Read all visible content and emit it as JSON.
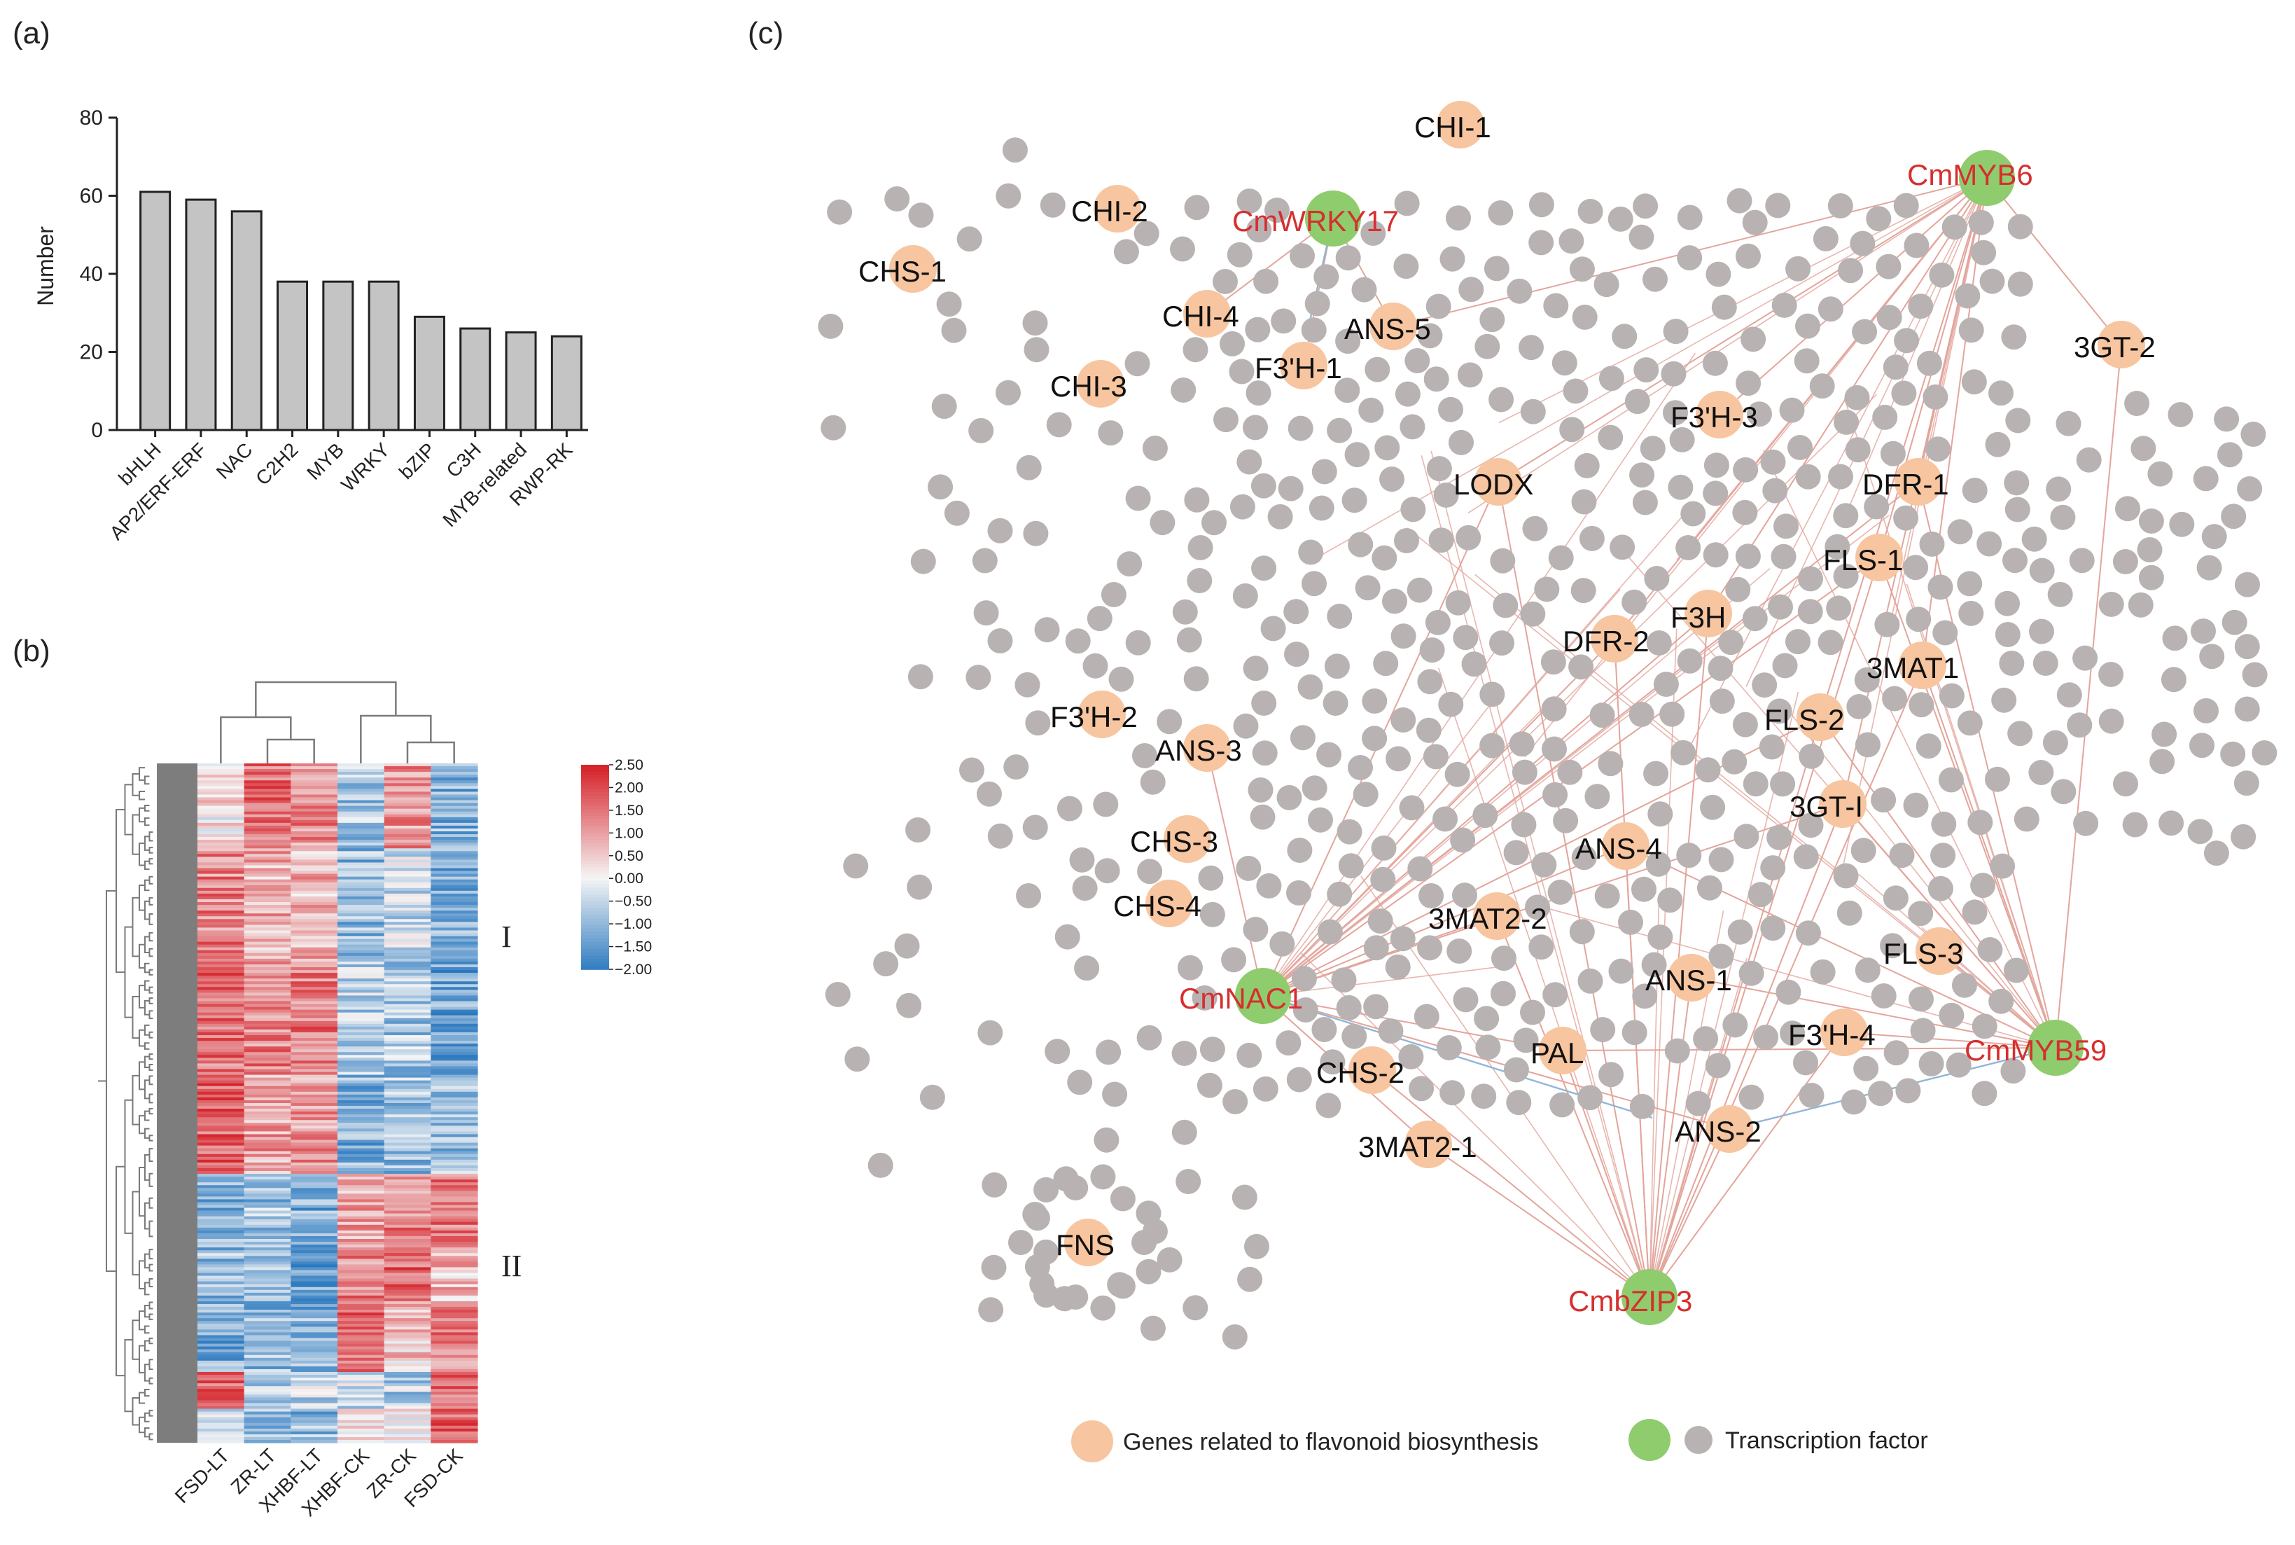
{
  "panels": {
    "a": "(a)",
    "b": "(b)",
    "c": "(c)"
  },
  "colors": {
    "bar_fill": "#c4c4c4",
    "gene_node": "#f7c59f",
    "tf_node": "#8fcc6e",
    "grey_node": "#b8b3b2",
    "edge_red": "#e3a59c",
    "edge_blue": "#8fb6d8",
    "tf_text": "#d62f2f",
    "heat_high": "#d6262d",
    "heat_mid": "#f4f4f4",
    "heat_low": "#2a78bf",
    "dendro": "#7a7a7a"
  },
  "chart_data": [
    {
      "type": "bar",
      "categories": [
        "bHLH",
        "AP2/ERF-ERF",
        "NAC",
        "C2H2",
        "MYB",
        "WRKY",
        "bZIP",
        "C3H",
        "MYB-related",
        "RWP-RK"
      ],
      "values": [
        61,
        59,
        56,
        38,
        38,
        38,
        29,
        26,
        25,
        24
      ],
      "xlabel": "",
      "ylabel": "Number",
      "ylim": [
        0,
        80
      ],
      "yticks": [
        0,
        20,
        40,
        60,
        80
      ],
      "grid": false
    },
    {
      "type": "heatmap",
      "columns": [
        "FSD-LT",
        "ZR-LT",
        "XHBF-LT",
        "XHBF-CK",
        "ZR-CK",
        "FSD-CK"
      ],
      "clusters": [
        "I",
        "II"
      ],
      "colorbar": {
        "ticks": [
          "2.50",
          "2.00",
          "1.50",
          "1.00",
          "0.50",
          "0.00",
          "−0.50",
          "−1.00",
          "−1.50",
          "−2.00"
        ],
        "range": [
          -2.0,
          2.5
        ]
      }
    },
    {
      "type": "network",
      "hubs": [
        "CmWRKY17",
        "CmMYB6",
        "CmNAC1",
        "CmMYB59",
        "CmbZIP3"
      ],
      "genes": [
        "CHI-1",
        "CHI-2",
        "CHS-1",
        "CHI-4",
        "ANS-5",
        "F3'H-1",
        "CHI-3",
        "3GT-2",
        "F3'H-3",
        "LODX",
        "DFR-1",
        "FLS-1",
        "F3H",
        "DFR-2",
        "3MAT1",
        "F3'H-2",
        "ANS-3",
        "FLS-2",
        "3GT-I",
        "CHS-3",
        "ANS-4",
        "CHS-4",
        "3MAT2-2",
        "FLS-3",
        "ANS-1",
        "F3'H-4",
        "PAL",
        "CHS-2",
        "ANS-2",
        "3MAT2-1",
        "FNS"
      ],
      "legend": [
        {
          "label": "Genes related to flavonoid biosynthesis"
        },
        {
          "label": "Transcription factor"
        }
      ]
    }
  ]
}
